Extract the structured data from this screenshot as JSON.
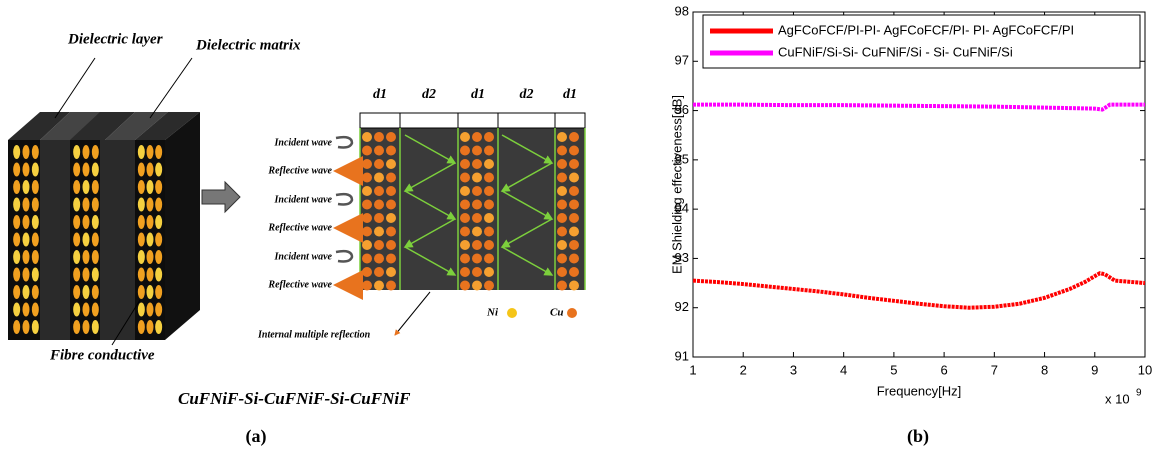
{
  "diagram": {
    "layer_labels": [
      "Dielectric layer",
      "Dielectric matrix",
      "Fibre conductive"
    ],
    "structure_label": "CuFNiF-Si-CuFNiF-Si-CuFNiF",
    "thickness_labels": [
      "d1",
      "d2",
      "d1",
      "d2",
      "d1"
    ],
    "wave_labels": [
      "Incident wave",
      "Reflective wave",
      "Incident wave",
      "Reflective wave",
      "Incident wave",
      "Reflective wave"
    ],
    "reflection_label": "Internal multiple reflection",
    "legend": [
      "Ni",
      "Cu"
    ]
  },
  "chart_data": {
    "type": "line",
    "y_label": "EM Shielding effectiveness[dB]",
    "x_label": "Frequency[Hz]",
    "x_scale_label": "x 10",
    "x_scale_exponent": "9",
    "xlim": [
      1,
      10
    ],
    "xticks": [
      1,
      2,
      3,
      4,
      5,
      6,
      7,
      8,
      9,
      10
    ],
    "ylim": [
      91,
      98
    ],
    "yticks": [
      91,
      92,
      93,
      94,
      95,
      96,
      97,
      98
    ],
    "grid": false,
    "legend_position": "top",
    "series": [
      {
        "name": "AgFCoFCF/PI-PI- AgFCoFCF/PI- PI- AgFCoFCF/PI",
        "color": "#ff0000",
        "x": [
          1,
          1.5,
          2,
          2.5,
          3,
          3.5,
          4,
          4.5,
          5,
          5.5,
          6,
          6.5,
          7,
          7.5,
          8,
          8.5,
          8.8,
          9.1,
          9.2,
          9.4,
          10
        ],
        "values": [
          92.55,
          92.52,
          92.48,
          92.43,
          92.38,
          92.33,
          92.27,
          92.2,
          92.14,
          92.08,
          92.03,
          92.0,
          92.02,
          92.08,
          92.2,
          92.38,
          92.52,
          92.7,
          92.68,
          92.55,
          92.5
        ]
      },
      {
        "name": "CuFNiF/Si-Si- CuFNiF/Si - Si- CuFNiF/Si",
        "color": "#ff00ff",
        "x": [
          1,
          2,
          3,
          4,
          5,
          6,
          7,
          8,
          9,
          9.15,
          9.3,
          10
        ],
        "values": [
          96.12,
          96.12,
          96.11,
          96.11,
          96.1,
          96.09,
          96.08,
          96.06,
          96.04,
          96.02,
          96.12,
          96.12
        ]
      }
    ]
  },
  "captions": [
    "(a)",
    "(b)"
  ]
}
